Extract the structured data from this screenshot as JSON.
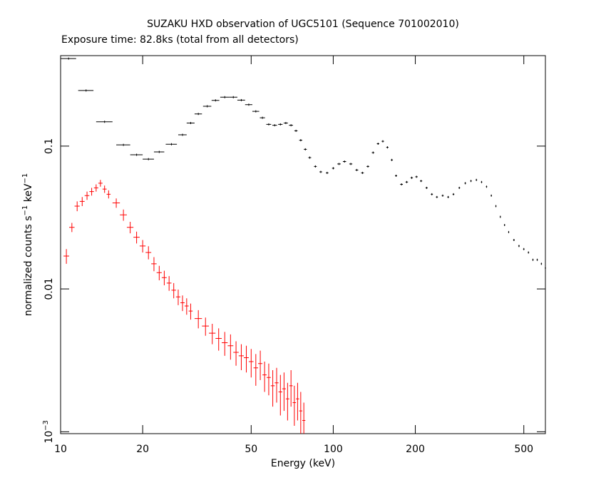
{
  "chart_data": {
    "type": "errorbar",
    "title": "SUZAKU HXD observation of UGC5101 (Sequence 701002010)",
    "subtitle": "Exposure time: 82.8ks (total from all detectors)",
    "x_label": "Energy (keV)",
    "y_label": "normalized counts s^−1 keV^−1",
    "log_x": true,
    "log_y": true,
    "xlim": [
      10,
      600
    ],
    "ylim": [
      0.00097,
      0.43
    ],
    "xticks": [
      10,
      20,
      50,
      100,
      200,
      500
    ],
    "yticks": [
      {
        "value": 0.001,
        "label": "10^−3"
      },
      0.01,
      0.1
    ],
    "series": [
      {
        "color": "#000000",
        "x": [
          10.7,
          12.4,
          14.5,
          17,
          19,
          21,
          23,
          25.5,
          28,
          30,
          32,
          34.5,
          37,
          40,
          43,
          46,
          49,
          52,
          55,
          58,
          61,
          64,
          67,
          70,
          73,
          76,
          79,
          82,
          86,
          90,
          95,
          100,
          105,
          110,
          116,
          122,
          128,
          134,
          140,
          146,
          152,
          158,
          164,
          170,
          178,
          186,
          194,
          202,
          210,
          220,
          230,
          240,
          252,
          264,
          276,
          290,
          305,
          320,
          335,
          350,
          365,
          380,
          395,
          410,
          425,
          440,
          460,
          480,
          500,
          520,
          540,
          560,
          580,
          600
        ],
        "values": [
          0.41,
          0.245,
          0.148,
          0.102,
          0.087,
          0.081,
          0.091,
          0.103,
          0.12,
          0.145,
          0.168,
          0.19,
          0.209,
          0.22,
          0.22,
          0.21,
          0.195,
          0.175,
          0.158,
          0.142,
          0.14,
          0.142,
          0.145,
          0.14,
          0.128,
          0.11,
          0.095,
          0.083,
          0.072,
          0.066,
          0.065,
          0.07,
          0.075,
          0.078,
          0.075,
          0.068,
          0.065,
          0.072,
          0.09,
          0.104,
          0.108,
          0.098,
          0.08,
          0.062,
          0.054,
          0.056,
          0.06,
          0.061,
          0.057,
          0.051,
          0.046,
          0.044,
          0.045,
          0.044,
          0.046,
          0.051,
          0.055,
          0.057,
          0.058,
          0.056,
          0.052,
          0.045,
          0.038,
          0.032,
          0.028,
          0.025,
          0.022,
          0.02,
          0.019,
          0.018,
          0.016,
          0.016,
          0.015,
          0.014
        ],
        "xerr": [
          0.7,
          0.8,
          1,
          1,
          1,
          1,
          1,
          1.2,
          1,
          1,
          1,
          1.2,
          1.2,
          1.5,
          1.5,
          1.5,
          1.5,
          1.5,
          1.2,
          1.2,
          1.2,
          1.2,
          1.2,
          1.2,
          1,
          1,
          1,
          1,
          1,
          1,
          1,
          1,
          1.5,
          1.5,
          1.5,
          1.5,
          1.5,
          1.5,
          1.5,
          1.5,
          1.5,
          1.5,
          1.5,
          1.5,
          2,
          2,
          2,
          2,
          2,
          2,
          2,
          2,
          2,
          2,
          2,
          2,
          2,
          2,
          2,
          2,
          2,
          2,
          2,
          2,
          2,
          2,
          3,
          3,
          3,
          3,
          3,
          3,
          3,
          3
        ]
      },
      {
        "color": "#ff0000",
        "x": [
          10.5,
          11,
          11.5,
          12,
          12.5,
          13,
          13.5,
          14,
          14.5,
          15,
          16,
          17,
          18,
          19,
          20,
          21,
          22,
          23,
          24,
          25,
          26,
          27,
          28,
          29,
          30,
          32,
          34,
          36,
          38,
          40,
          42,
          44,
          46,
          48,
          50,
          52,
          54,
          56,
          58,
          60,
          62,
          64,
          66,
          68,
          70,
          72,
          74,
          76,
          78
        ],
        "values": [
          0.017,
          0.027,
          0.038,
          0.041,
          0.045,
          0.048,
          0.051,
          0.055,
          0.05,
          0.046,
          0.04,
          0.033,
          0.027,
          0.023,
          0.02,
          0.018,
          0.015,
          0.013,
          0.012,
          0.011,
          0.0098,
          0.0088,
          0.008,
          0.0076,
          0.007,
          0.0062,
          0.0055,
          0.0049,
          0.0045,
          0.0042,
          0.004,
          0.0036,
          0.0034,
          0.0033,
          0.0031,
          0.0028,
          0.003,
          0.0025,
          0.0024,
          0.0021,
          0.0022,
          0.0019,
          0.002,
          0.0017,
          0.0021,
          0.0016,
          0.0017,
          0.0014,
          0.0012
        ],
        "yerr": [
          0.002,
          0.002,
          0.003,
          0.003,
          0.003,
          0.003,
          0.003,
          0.003,
          0.003,
          0.003,
          0.003,
          0.003,
          0.0025,
          0.0022,
          0.002,
          0.0019,
          0.0017,
          0.0015,
          0.0014,
          0.0013,
          0.0012,
          0.0011,
          0.001,
          0.001,
          0.0009,
          0.0009,
          0.0008,
          0.0008,
          0.0008,
          0.0008,
          0.0008,
          0.0007,
          0.0007,
          0.0007,
          0.0007,
          0.0007,
          0.0007,
          0.0006,
          0.0006,
          0.0006,
          0.0006,
          0.0006,
          0.0006,
          0.0005,
          0.0006,
          0.0005,
          0.0005,
          0.0005,
          0.0004
        ],
        "xerr": [
          0.25,
          0.25,
          0.25,
          0.25,
          0.25,
          0.25,
          0.25,
          0.25,
          0.25,
          0.25,
          0.5,
          0.5,
          0.5,
          0.5,
          0.5,
          0.5,
          0.5,
          0.5,
          0.5,
          0.5,
          0.5,
          0.5,
          0.5,
          0.5,
          0.5,
          1,
          1,
          1,
          1,
          1,
          1,
          1,
          1,
          1,
          1,
          1,
          1,
          1,
          1,
          1,
          1,
          1,
          1,
          1,
          1,
          1,
          1,
          1,
          1
        ]
      }
    ]
  }
}
